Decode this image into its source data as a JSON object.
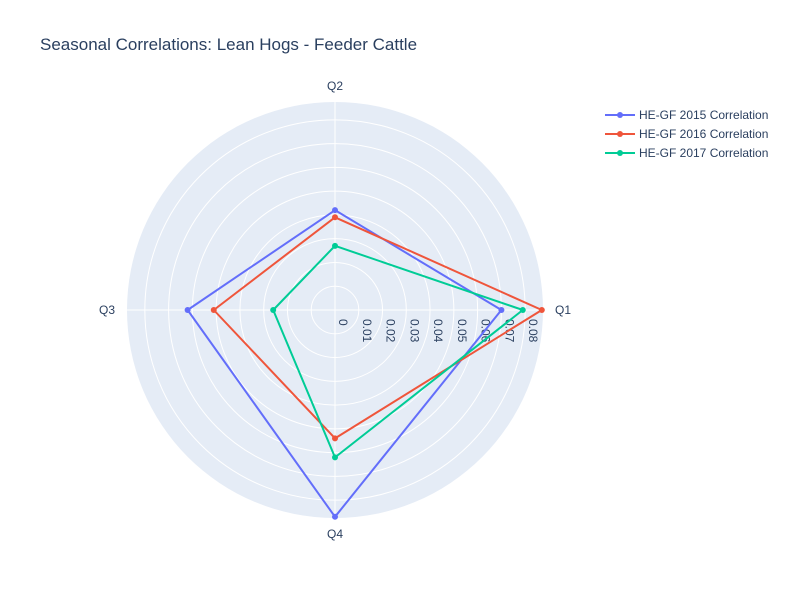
{
  "chart_data": {
    "type": "radar",
    "title": "Seasonal Correlations: Lean Hogs - Feeder Cattle",
    "categories": [
      "Q1",
      "Q2",
      "Q3",
      "Q4"
    ],
    "radial_ticks": [
      "0",
      "0.01",
      "0.02",
      "0.03",
      "0.04",
      "0.05",
      "0.06",
      "0.07",
      "0.08"
    ],
    "rlim": [
      0,
      0.0875
    ],
    "grid": true,
    "legend_position": "top-right",
    "background_color": "#e5ecf6",
    "series": [
      {
        "name": "HE-GF 2015 Correlation",
        "color": "#636efa",
        "values": [
          0.07,
          0.042,
          0.062,
          0.087
        ]
      },
      {
        "name": "HE-GF 2016 Correlation",
        "color": "#ef553b",
        "values": [
          0.087,
          0.039,
          0.051,
          0.054
        ]
      },
      {
        "name": "HE-GF 2017 Correlation",
        "color": "#00cc96",
        "values": [
          0.079,
          0.027,
          0.026,
          0.062
        ]
      }
    ]
  }
}
